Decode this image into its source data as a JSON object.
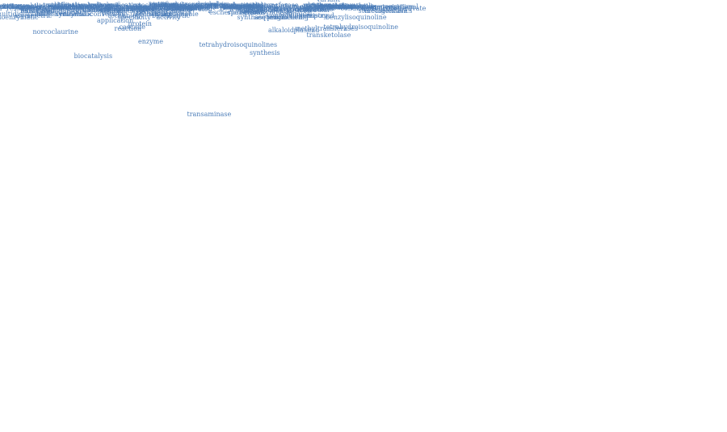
{
  "word_color": "#4c7db8",
  "words": [
    "transaminase",
    "tetrahydroisoquinolines",
    "biocatalysis",
    "synthesis",
    "enzyme",
    "transketolase",
    "norcoclaurine",
    "reaction",
    "plasmid",
    "alkaloid",
    "cascade",
    "methyltransferases",
    "tetrahydroisoquinoline",
    "benzylisoquinoline",
    "protein",
    "chemoenzymatic",
    "application",
    "multidisciplinary",
    "asymmetric",
    "enzymatic",
    "synthetic",
    "antimicrobial",
    "specificity",
    "engineering",
    "sequence",
    "synthase",
    "production",
    "conversion",
    "technology",
    "biocatalytic",
    "mechanism",
    "activity",
    "sustainable",
    "compound",
    "chemistry",
    "chemical",
    "metagenomics",
    "stereoselective",
    "fermentation",
    "bioconversion",
    "biosynthesis",
    "escherichia",
    "chromophore",
    "dopamine",
    "bacterial",
    "substrate",
    "science",
    "design",
    "expression",
    "modelling",
    "product",
    "kinetic",
    "organic",
    "alcohol",
    "chiral",
    "spengler",
    "coli",
    "pathway",
    "approach",
    "aldehyde",
    "concentration",
    "discovery",
    "analysis",
    "different",
    "potential",
    "functional",
    "continuous",
    "tuberculosis",
    "strategy",
    "evolution",
    "modification",
    "bioprocessing",
    "comparison",
    "identification",
    "pyridinium",
    "properties",
    "screening",
    "supercoiling",
    "regioselectivity",
    "dependent",
    "biocatalyst",
    "amination",
    "vanillylamine",
    "natural",
    "stability",
    "novel",
    "yield",
    "peptide",
    "molecular",
    "formation",
    "arabinose",
    "recombinant",
    "metagenomic",
    "immobilization",
    "aminopolyols",
    "biorefinery",
    "challenging",
    "condition",
    "thermostable",
    "experimental",
    "characterization",
    "hydroxypyruvate",
    "segregational",
    "structure",
    "method",
    "increase",
    "domain",
    "pyruvate",
    "mutagenesis",
    "bioconversions",
    "biotransformation",
    "glucoamylase",
    "metagenome",
    "photoelectron",
    "fluorescent",
    "optimisation",
    "reductase",
    "resistance",
    "metagenotic",
    "stereoselectivities",
    "autonucleolytic",
    "amplification",
    "extremophilic",
    "bioprocess",
    "pseudomonas",
    "degradation",
    "biotechnology",
    "mycobacterium",
    "variant",
    "sugar",
    "strain",
    "system",
    "mask",
    "batch",
    "serine",
    "cell",
    "pictet",
    "compounds",
    "glucose",
    "microscale",
    "industrial",
    "efficient",
    "mutant",
    "catalytic",
    "sequential",
    "donor",
    "active",
    "range",
    "density",
    "single",
    "alignment",
    "disubstituted",
    "aminotransferase",
    "important",
    "technique",
    "diversification",
    "ketone",
    "amine",
    "phosphate",
    "vinasse",
    "reactor",
    "fragment",
    "surface",
    "pectin",
    "epoxide",
    "reusable",
    "commercial",
    "electron",
    "protease",
    "metabolism",
    "inhibition",
    "synthons",
    "selective",
    "step",
    "carbonyl",
    "unique",
    "purification",
    "alternative",
    "study",
    "performance",
    "significant",
    "hydrolysis",
    "traditional",
    "stabilisation",
    "imine",
    "cyclisation",
    "purified",
    "optimum",
    "limitations",
    "trends",
    "mixed",
    "scale",
    "whole",
    "amino"
  ]
}
